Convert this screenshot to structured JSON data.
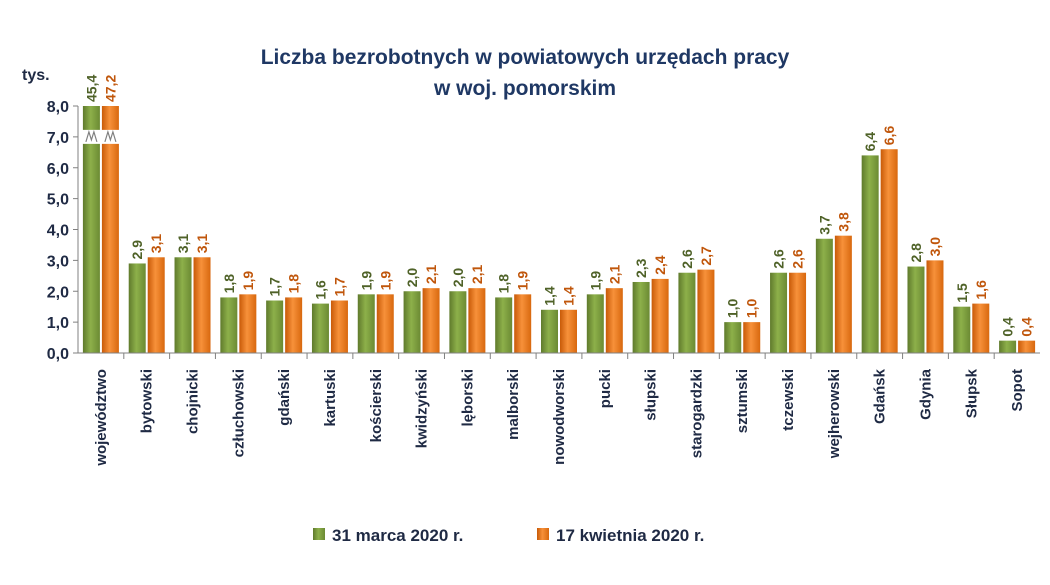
{
  "chart_data": {
    "type": "bar",
    "title_line1": "Liczba bezrobotnych w powiatowych urzędach pracy",
    "title_line2": "w woj. pomorskim",
    "unit_label": "tys.",
    "ylim": [
      0,
      8
    ],
    "yticks": [
      "0,0",
      "1,0",
      "2,0",
      "3,0",
      "4,0",
      "5,0",
      "6,0",
      "7,0",
      "8,0"
    ],
    "axis_break": true,
    "grid": false,
    "legend_position": "bottom",
    "categories": [
      "województwo",
      "bytowski",
      "chojnicki",
      "człuchowski",
      "gdański",
      "kartuski",
      "kościerski",
      "kwidzyński",
      "lęborski",
      "malborski",
      "nowodworski",
      "pucki",
      "słupski",
      "starogardzki",
      "sztumski",
      "tczewski",
      "wejherowski",
      "Gdańsk",
      "Gdynia",
      "Słupsk",
      "Sopot"
    ],
    "series": [
      {
        "name": "31 marca 2020 r.",
        "color": "#77933c",
        "label_color": "#4f6228",
        "values": [
          45.4,
          2.9,
          3.1,
          1.8,
          1.7,
          1.6,
          1.9,
          2.0,
          2.0,
          1.8,
          1.4,
          1.9,
          2.3,
          2.6,
          1.0,
          2.6,
          3.7,
          6.4,
          2.8,
          1.5,
          0.4
        ],
        "labels": [
          "45,4",
          "2,9",
          "3,1",
          "1,8",
          "1,7",
          "1,6",
          "1,9",
          "2,0",
          "2,0",
          "1,8",
          "1,4",
          "1,9",
          "2,3",
          "2,6",
          "1,0",
          "2,6",
          "3,7",
          "6,4",
          "2,8",
          "1,5",
          "0,4"
        ]
      },
      {
        "name": "17 kwietnia 2020 r.",
        "color": "#e36c09",
        "label_color": "#c0560b",
        "values": [
          47.2,
          3.1,
          3.1,
          1.9,
          1.8,
          1.7,
          1.9,
          2.1,
          2.1,
          1.9,
          1.4,
          2.1,
          2.4,
          2.7,
          1.0,
          2.6,
          3.8,
          6.6,
          3.0,
          1.6,
          0.4
        ],
        "labels": [
          "47,2",
          "3,1",
          "3,1",
          "1,9",
          "1,8",
          "1,7",
          "1,9",
          "2,1",
          "2,1",
          "1,9",
          "1,4",
          "2,1",
          "2,4",
          "2,7",
          "1,0",
          "2,6",
          "3,8",
          "6,6",
          "3,0",
          "1,6",
          "0,4"
        ]
      }
    ]
  }
}
